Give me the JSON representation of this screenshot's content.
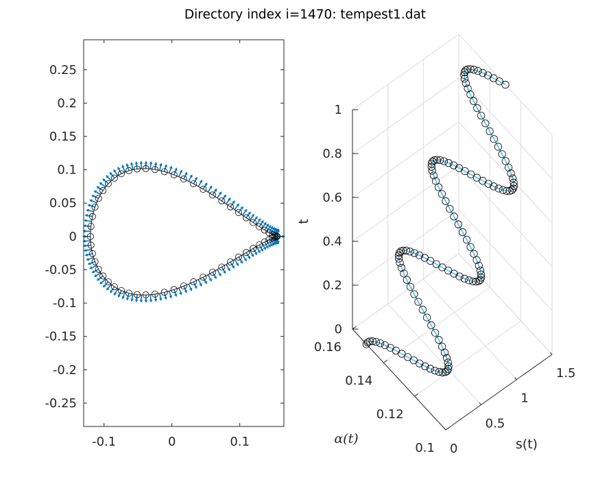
{
  "figure": {
    "title": "Directory index i=1470: tempest1.dat"
  },
  "colors": {
    "quiver": "#0072BD",
    "marker_edge": "#000000",
    "curve3d": "#4DBEEE",
    "axis": "#262626",
    "grid": "#dcdcdc"
  },
  "chart_data": [
    {
      "type": "scatter",
      "subtype": "closed curve with normal-vector quiver",
      "xlim": [
        -0.13,
        0.165
      ],
      "ylim": [
        -0.285,
        0.295
      ],
      "xticks": [
        "-0.1",
        "0",
        "0.1"
      ],
      "yticks": [
        "0.25",
        "0.2",
        "0.15",
        "0.1",
        "0.05",
        "0",
        "-0.05",
        "-0.1",
        "-0.15",
        "-0.2",
        "-0.25"
      ],
      "shape": "teardrop",
      "shape_params": {
        "x_tip": 0.155,
        "x_left": -0.12,
        "y_top": 0.145,
        "y_bottom": -0.125
      },
      "n_points": 120,
      "grid": false,
      "legend": "none"
    },
    {
      "type": "line",
      "subtype": "3d space curve with circle markers",
      "xlabel": "s(t)",
      "ylabel": "α(t)",
      "zlabel": "t",
      "s_range": [
        0,
        1.5
      ],
      "alpha_range": [
        0.1,
        0.16
      ],
      "t_range": [
        0,
        1
      ],
      "s_ticks": [
        "0",
        "0.5",
        "1",
        "1.5"
      ],
      "alpha_ticks": [
        "0.1",
        "0.12",
        "0.14",
        "0.16"
      ],
      "t_ticks": [
        "0",
        "0.2",
        "0.4",
        "0.6",
        "0.8",
        "1"
      ],
      "curve": {
        "s_linear_in_t": [
          0,
          1.5
        ],
        "alpha_mean": 0.13,
        "alpha_amplitude": 0.021,
        "alpha_cycles": 3.25
      },
      "n_points": 130,
      "grid": true,
      "legend": "none"
    }
  ]
}
